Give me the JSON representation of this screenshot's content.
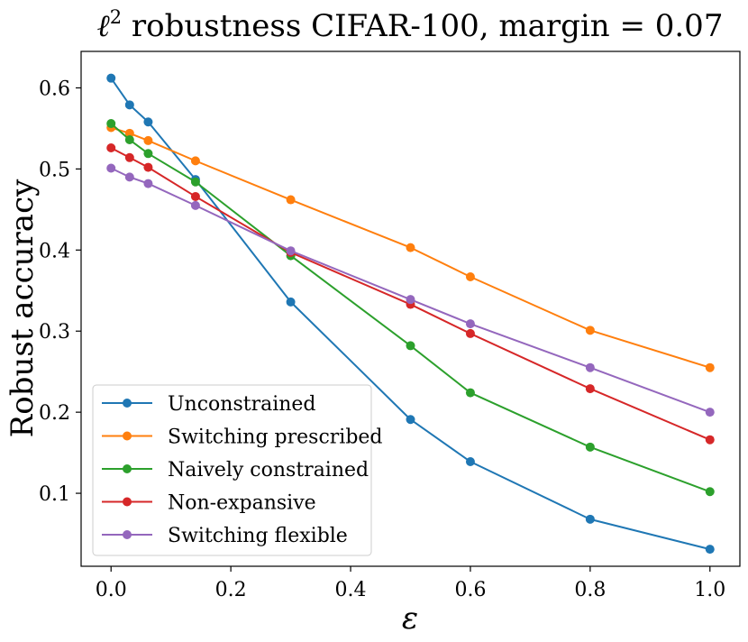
{
  "chart_data": {
    "type": "line",
    "title_prefix": "ℓ",
    "title_sup": "2",
    "title_rest": " robustness CIFAR-100, margin = 0.07",
    "xlabel": "ε",
    "ylabel": "Robust accuracy",
    "xlim": [
      -0.05,
      1.05
    ],
    "ylim": [
      0.01,
      0.645
    ],
    "xticks": [
      0.0,
      0.2,
      0.4,
      0.6,
      0.8,
      1.0
    ],
    "xtick_labels": [
      "0.0",
      "0.2",
      "0.4",
      "0.6",
      "0.8",
      "1.0"
    ],
    "yticks": [
      0.1,
      0.2,
      0.3,
      0.4,
      0.5,
      0.6
    ],
    "ytick_labels": [
      "0.1",
      "0.2",
      "0.3",
      "0.4",
      "0.5",
      "0.6"
    ],
    "grid": false,
    "legend_position": "lower-left",
    "x": [
      0.0,
      0.031,
      0.062,
      0.141,
      0.3,
      0.5,
      0.6,
      0.8,
      1.0
    ],
    "series": [
      {
        "name": "Unconstrained",
        "color": "#1f77b4",
        "values": [
          0.612,
          0.579,
          0.558,
          0.487,
          0.336,
          0.191,
          0.139,
          0.068,
          0.031
        ]
      },
      {
        "name": "Switching prescribed",
        "color": "#ff7f0e",
        "values": [
          0.551,
          0.544,
          0.535,
          0.51,
          0.462,
          0.403,
          0.367,
          0.301,
          0.255
        ]
      },
      {
        "name": "Naively constrained",
        "color": "#2ca02c",
        "values": [
          0.556,
          0.536,
          0.519,
          0.484,
          0.393,
          0.282,
          0.224,
          0.157,
          0.102
        ]
      },
      {
        "name": "Non-expansive",
        "color": "#d62728",
        "values": [
          0.526,
          0.514,
          0.502,
          0.466,
          0.397,
          0.333,
          0.297,
          0.229,
          0.166
        ]
      },
      {
        "name": "Switching flexible",
        "color": "#9467bd",
        "values": [
          0.501,
          0.49,
          0.482,
          0.455,
          0.399,
          0.339,
          0.309,
          0.255,
          0.2
        ]
      }
    ]
  }
}
